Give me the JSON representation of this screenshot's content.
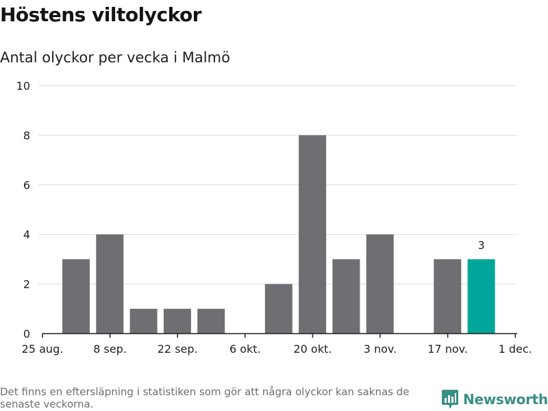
{
  "title": "Höstens viltolyckor",
  "subtitle": "Antal olyckor per vecka i Malmö",
  "footnote": "Det finns en eftersläpning i statistiken som gör att några olyckor kan saknas de senaste veckorna.",
  "brand": {
    "name": "Newsworthy",
    "icon": "newsworthy-logo-icon"
  },
  "colors": {
    "bar": "#6f6e73",
    "highlight": "#00a69a",
    "grid": "#dcdcdc",
    "axis": "#1e1e1e"
  },
  "chart_data": {
    "type": "bar",
    "title": "Antal olyckor per vecka i Malmö",
    "xlabel": "",
    "ylabel": "",
    "ylim": [
      0,
      10
    ],
    "yticks": [
      0,
      2,
      4,
      6,
      8,
      10
    ],
    "grid": true,
    "x_tick_labels": [
      "25 aug.",
      "8 sep.",
      "22 sep.",
      "6 okt.",
      "20 okt.",
      "3 nov.",
      "17 nov.",
      "1 dec."
    ],
    "weeks": [
      {
        "value": 3
      },
      {
        "value": 4
      },
      {
        "value": 1
      },
      {
        "value": 1
      },
      {
        "value": 1
      },
      {
        "value": 0
      },
      {
        "value": 2
      },
      {
        "value": 8
      },
      {
        "value": 3
      },
      {
        "value": 4
      },
      {
        "value": 0
      },
      {
        "value": 3
      },
      {
        "value": 3,
        "highlight": true,
        "label": "3"
      }
    ]
  }
}
